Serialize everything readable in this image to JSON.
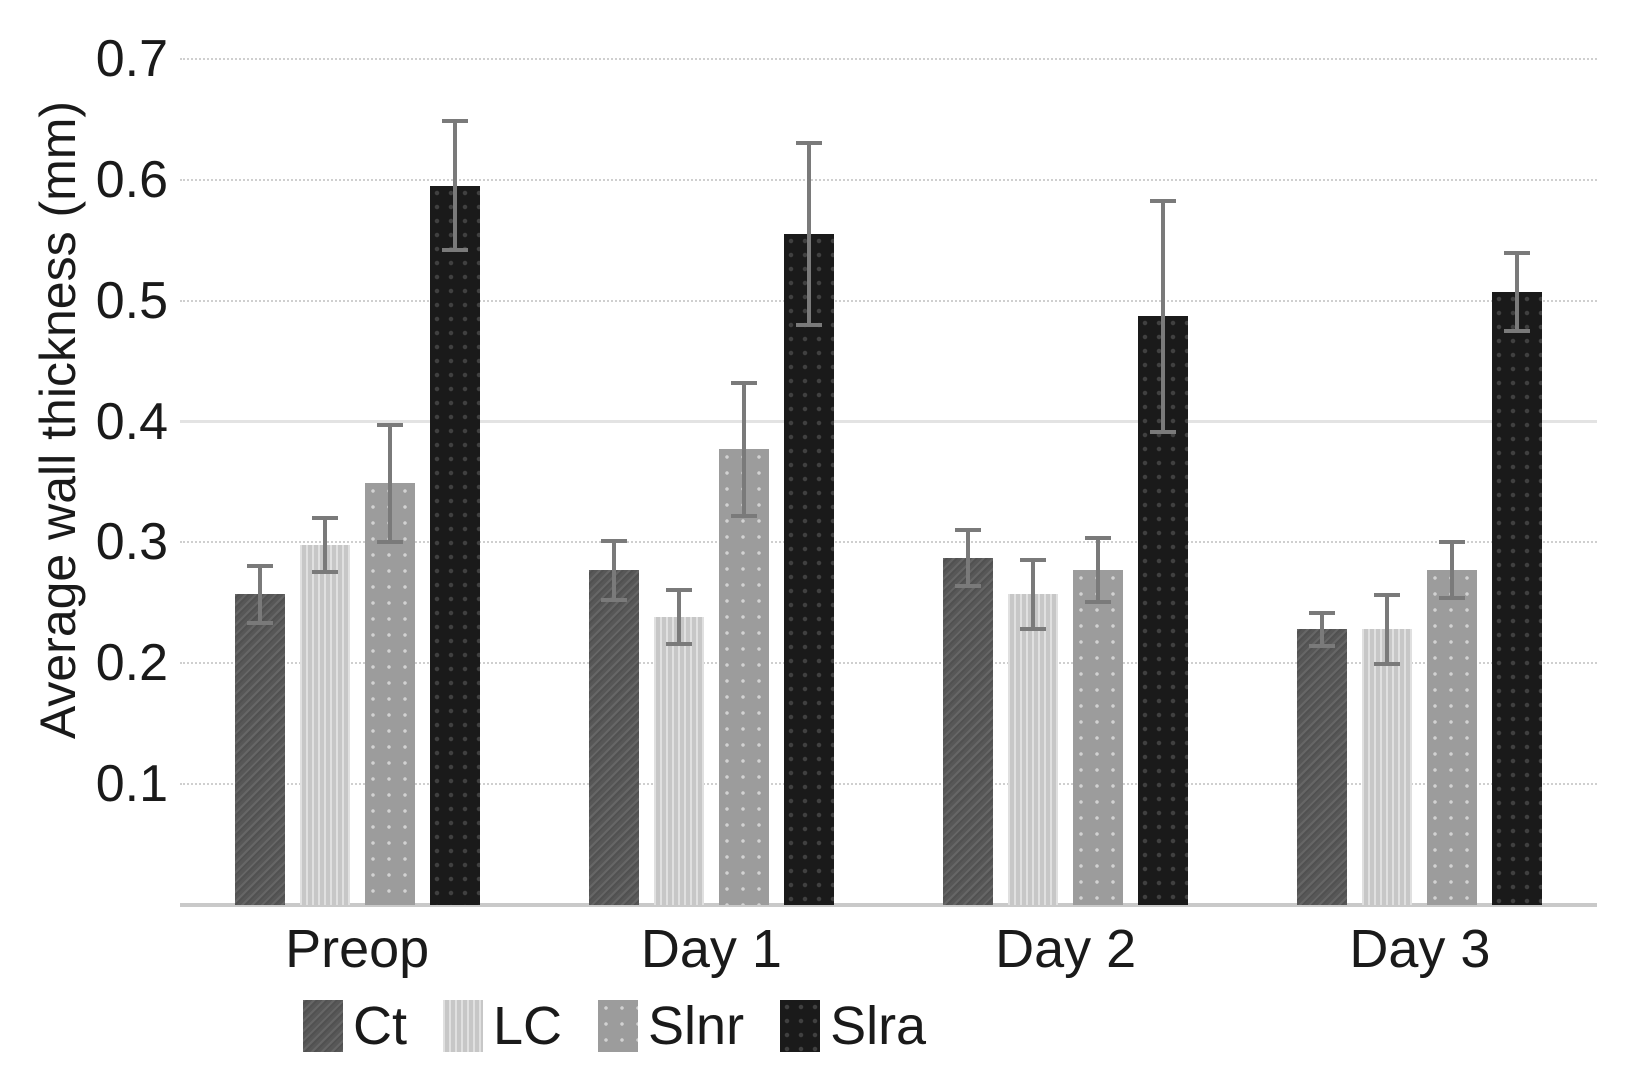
{
  "chart_data": {
    "type": "bar",
    "title": "",
    "ylabel": "Average wall thickness (mm)",
    "xlabel": "",
    "ylim": [
      0,
      0.7
    ],
    "yticks": [
      0.1,
      0.2,
      0.3,
      0.4,
      0.5,
      0.6,
      0.7
    ],
    "grid": true,
    "legend_position": "bottom",
    "categories": [
      "Preop",
      "Day 1",
      "Day 2",
      "Day 3"
    ],
    "series": [
      {
        "name": "Ct",
        "color": "#575757",
        "values": [
          0.257,
          0.277,
          0.287,
          0.228
        ],
        "errors": [
          0.025,
          0.026,
          0.025,
          0.015
        ]
      },
      {
        "name": "LC",
        "color": "#c7c7c7",
        "values": [
          0.298,
          0.238,
          0.257,
          0.228
        ],
        "errors": [
          0.024,
          0.024,
          0.03,
          0.03
        ]
      },
      {
        "name": "Slnr",
        "color": "#9c9c9c",
        "values": [
          0.349,
          0.377,
          0.277,
          0.277
        ],
        "errors": [
          0.05,
          0.057,
          0.028,
          0.025
        ]
      },
      {
        "name": "Slra",
        "color": "#1a1a1a",
        "values": [
          0.595,
          0.555,
          0.487,
          0.507
        ],
        "errors": [
          0.055,
          0.077,
          0.097,
          0.034
        ]
      }
    ],
    "colors": {
      "error_bar": "#7a7a7a",
      "gridline_dotted": "#cfcfcf",
      "gridline_solid": "#e3e3e3",
      "axis_line": "#c9c9c9",
      "text": "#1a1a1a",
      "background": "#ffffff"
    },
    "solid_gridline_at": 0.4
  }
}
